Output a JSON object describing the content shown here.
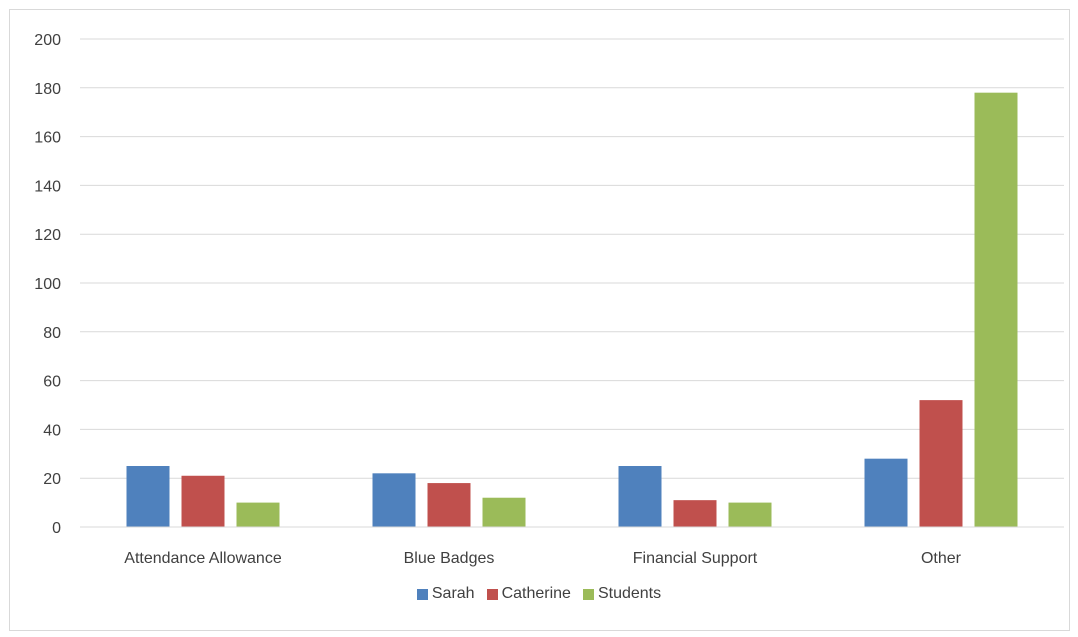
{
  "chart_data": {
    "type": "bar",
    "title": "",
    "xlabel": "",
    "ylabel": "",
    "categories": [
      "Attendance Allowance",
      "Blue Badges",
      "Financial Support",
      "Other"
    ],
    "series": [
      {
        "name": "Sarah",
        "color": "#4f81bd",
        "values": [
          25,
          22,
          25,
          28
        ]
      },
      {
        "name": "Catherine",
        "color": "#c0504d",
        "values": [
          21,
          18,
          11,
          52
        ]
      },
      {
        "name": "Students",
        "color": "#9bbb59",
        "values": [
          10,
          12,
          10,
          178
        ]
      }
    ],
    "ylim": [
      0,
      200
    ],
    "yticks": [
      0,
      20,
      40,
      60,
      80,
      100,
      120,
      140,
      160,
      180,
      200
    ],
    "grid": true,
    "legend_position": "bottom"
  }
}
